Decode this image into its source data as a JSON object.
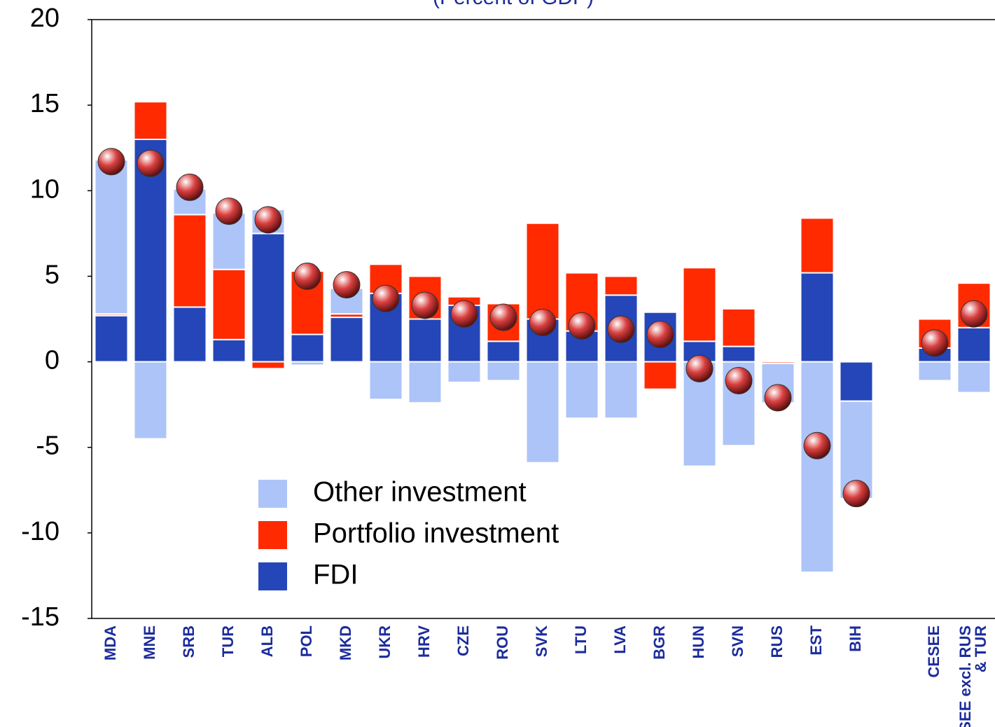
{
  "chart_data": {
    "type": "bar",
    "stacked": true,
    "subtitle": "(Percent of GDP)",
    "categories": [
      "MDA",
      "MNE",
      "SRB",
      "TUR",
      "ALB",
      "POL",
      "MKD",
      "UKR",
      "HRV",
      "CZE",
      "ROU",
      "SVK",
      "LTU",
      "LVA",
      "BGR",
      "HUN",
      "SVN",
      "RUS",
      "EST",
      "BIH",
      null,
      "CESEE",
      "CESEE excl. RUS & TUR"
    ],
    "series": [
      {
        "name": "FDI",
        "color": "#2446b8",
        "values": [
          2.7,
          13.0,
          3.2,
          1.3,
          7.5,
          1.6,
          2.6,
          4.0,
          2.5,
          3.3,
          1.2,
          2.5,
          1.8,
          3.9,
          2.9,
          1.2,
          0.9,
          0,
          5.2,
          -2.3,
          null,
          0.8,
          2.0
        ]
      },
      {
        "name": "Portfolio investment",
        "color": "#ff2a00",
        "values": [
          0.1,
          2.2,
          5.4,
          4.1,
          -0.4,
          3.7,
          0.2,
          1.7,
          2.5,
          0.5,
          2.2,
          5.6,
          3.4,
          1.1,
          -1.6,
          4.3,
          2.2,
          -0.1,
          3.2,
          0,
          null,
          1.7,
          2.6
        ]
      },
      {
        "name": "Other investment",
        "color": "#adc4f8",
        "values": [
          9.0,
          -4.5,
          1.5,
          3.3,
          1.4,
          -0.2,
          1.5,
          -2.2,
          -2.4,
          -1.2,
          -1.1,
          -5.9,
          -3.3,
          -3.3,
          0,
          -6.1,
          -4.9,
          -2.3,
          -12.3,
          -5.7,
          null,
          -1.1,
          -1.8
        ]
      }
    ],
    "markers": [
      11.7,
      11.6,
      10.2,
      8.8,
      8.3,
      5.0,
      4.5,
      3.7,
      3.3,
      2.8,
      2.6,
      2.3,
      2.1,
      1.9,
      1.6,
      -0.4,
      -1.1,
      -2.1,
      -4.9,
      -7.7,
      null,
      1.1,
      2.8
    ],
    "legend_order": [
      2,
      1,
      0
    ],
    "ylim": [
      -15,
      20
    ],
    "yticks": [
      -15,
      -10,
      -5,
      0,
      5,
      10,
      15,
      20
    ]
  }
}
